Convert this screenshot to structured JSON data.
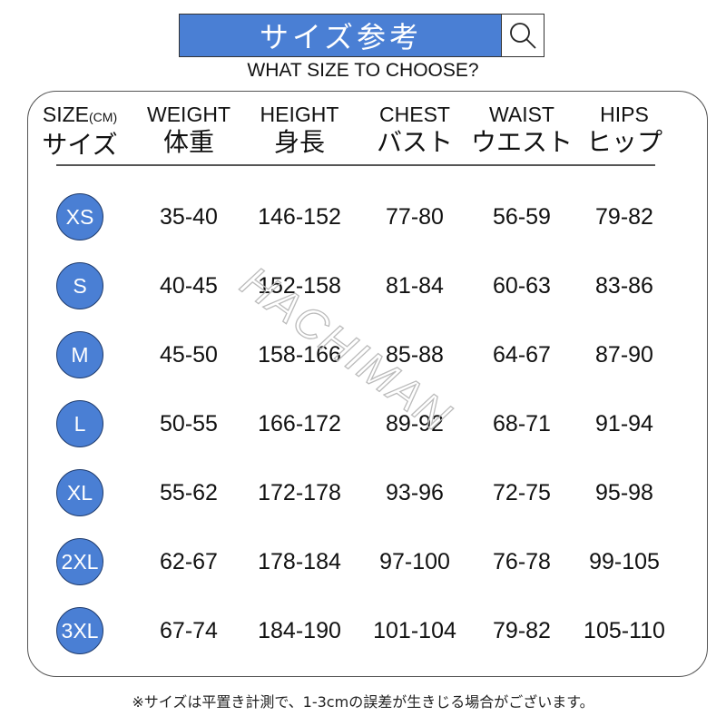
{
  "title": "サイズ参考",
  "subtitle": "WHAT SIZE TO CHOOSE?",
  "search_icon": "magnifier-icon",
  "watermark": "HACHIMAN",
  "accent_color": "#4a7fd4",
  "headers": [
    {
      "en": "SIZE",
      "unit": "(CM)",
      "jp": "サイズ"
    },
    {
      "en": "WEIGHT",
      "jp": "体重"
    },
    {
      "en": "HEIGHT",
      "jp": "身長"
    },
    {
      "en": "CHEST",
      "jp": "バスト"
    },
    {
      "en": "WAIST",
      "jp": "ウエスト"
    },
    {
      "en": "HIPS",
      "jp": "ヒップ"
    }
  ],
  "rows": [
    [
      "XS",
      "35-40",
      "146-152",
      "77-80",
      "56-59",
      "79-82"
    ],
    [
      "S",
      "40-45",
      "152-158",
      "81-84",
      "60-63",
      "83-86"
    ],
    [
      "M",
      "45-50",
      "158-166",
      "85-88",
      "64-67",
      "87-90"
    ],
    [
      "L",
      "50-55",
      "166-172",
      "89-92",
      "68-71",
      "91-94"
    ],
    [
      "XL",
      "55-62",
      "172-178",
      "93-96",
      "72-75",
      "95-98"
    ],
    [
      "2XL",
      "62-67",
      "178-184",
      "97-100",
      "76-78",
      "99-105"
    ],
    [
      "3XL",
      "67-74",
      "184-190",
      "101-104",
      "79-82",
      "105-110"
    ]
  ],
  "note": "※サイズは平置き計測で、1-3cmの誤差が生きじる場合がございます。"
}
